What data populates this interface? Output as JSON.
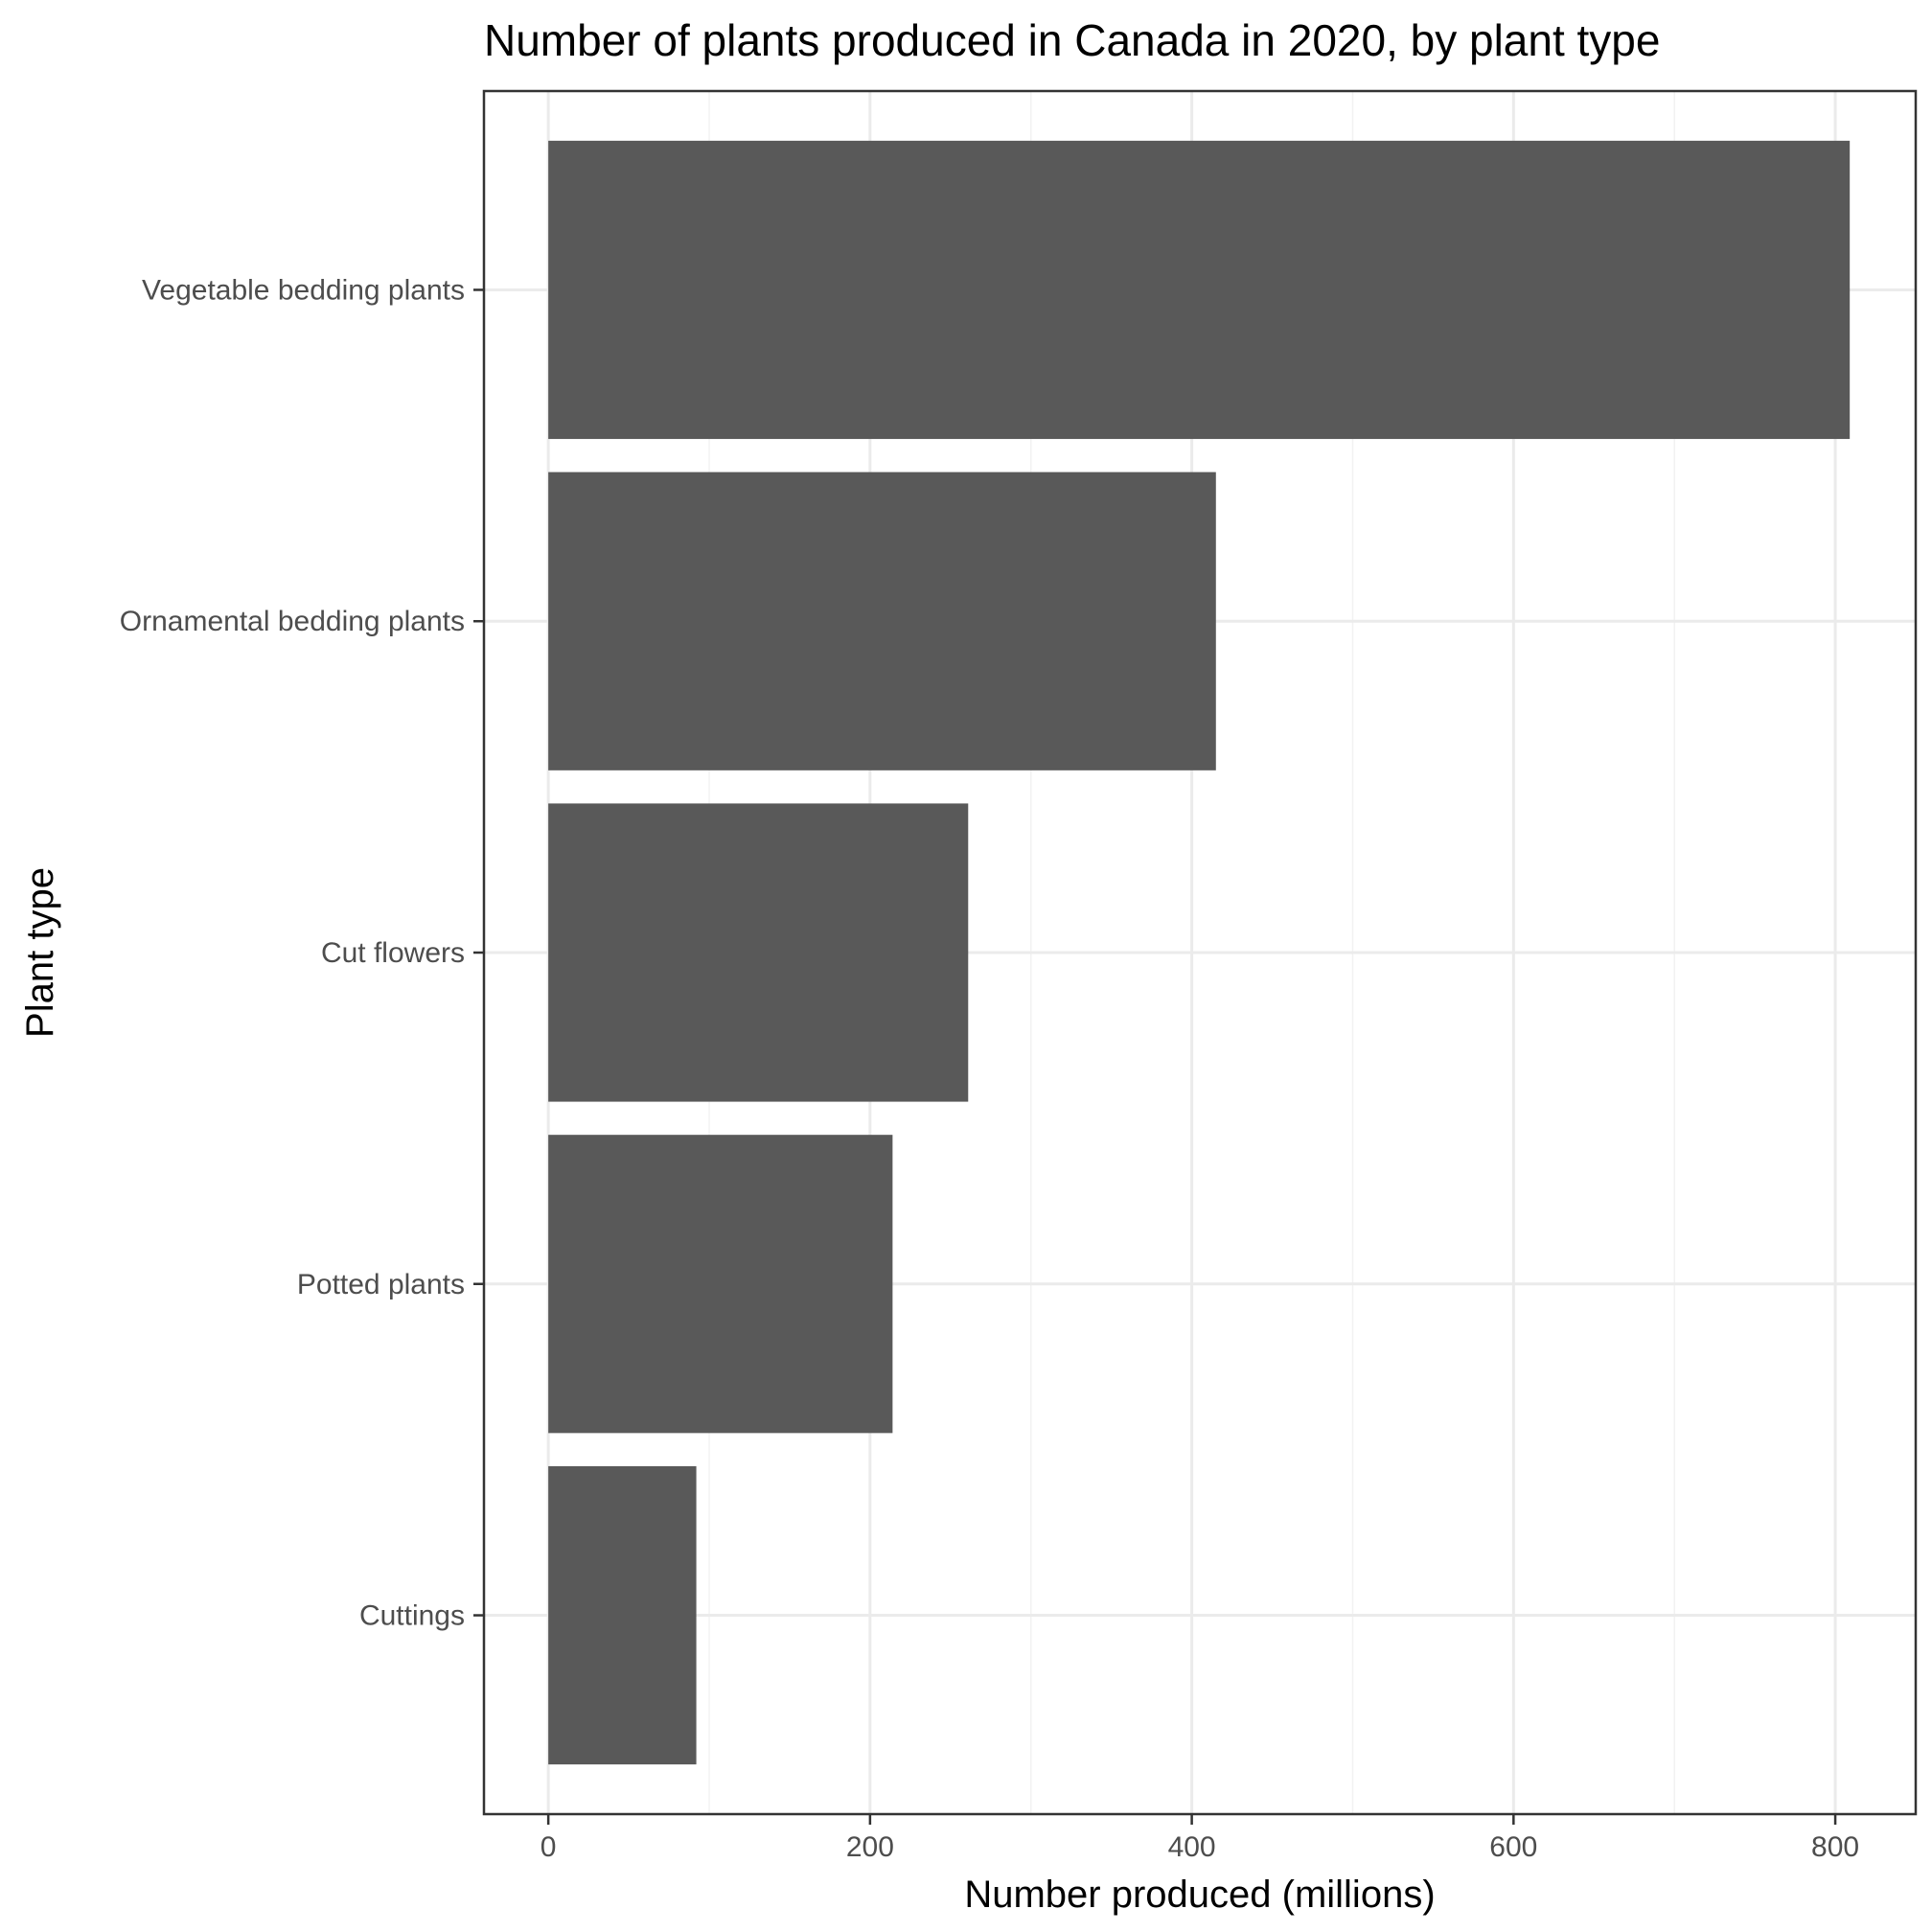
{
  "chart_data": {
    "type": "bar",
    "orientation": "horizontal",
    "title": "Number of plants produced in Canada in 2020, by plant type",
    "xlabel": "Number produced (millions)",
    "ylabel": "Plant type",
    "categories": [
      "Vegetable bedding plants",
      "Ornamental bedding plants",
      "Cut flowers",
      "Potted plants",
      "Cuttings"
    ],
    "values": [
      809,
      415,
      261,
      214,
      92
    ],
    "xlim": [
      -40,
      850
    ],
    "xticks": [
      0,
      200,
      400,
      600,
      800
    ],
    "grid": true,
    "legend": "none",
    "colors": {
      "bar": "#595959",
      "grid_major": "#ebebeb",
      "grid_minor": "#f2f2f2",
      "panel_border": "#333333",
      "background": "#ffffff"
    }
  }
}
